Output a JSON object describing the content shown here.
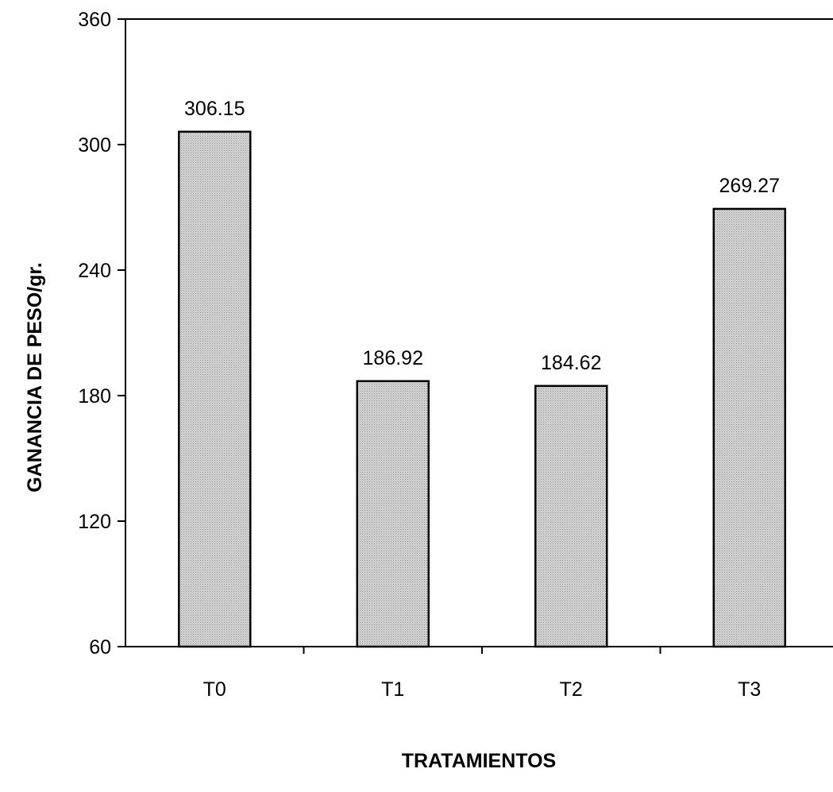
{
  "chart_data": {
    "type": "bar",
    "title": "",
    "xlabel": "TRATAMIENTOS",
    "ylabel": "GANANCIA DE PESO/gr.",
    "categories": [
      "T0",
      "T1",
      "T2",
      "T3"
    ],
    "values": [
      306.15,
      186.92,
      184.62,
      269.27
    ],
    "value_labels": [
      "306.15",
      "186.92",
      "184.62",
      "269.27"
    ],
    "ylim": [
      60,
      360
    ],
    "yticks": [
      60,
      120,
      180,
      240,
      300,
      360
    ],
    "grid": false,
    "legend": "none",
    "colors": {
      "bar_fill": "#cfcfcf",
      "bar_stroke": "#000000",
      "axis": "#000000"
    }
  }
}
